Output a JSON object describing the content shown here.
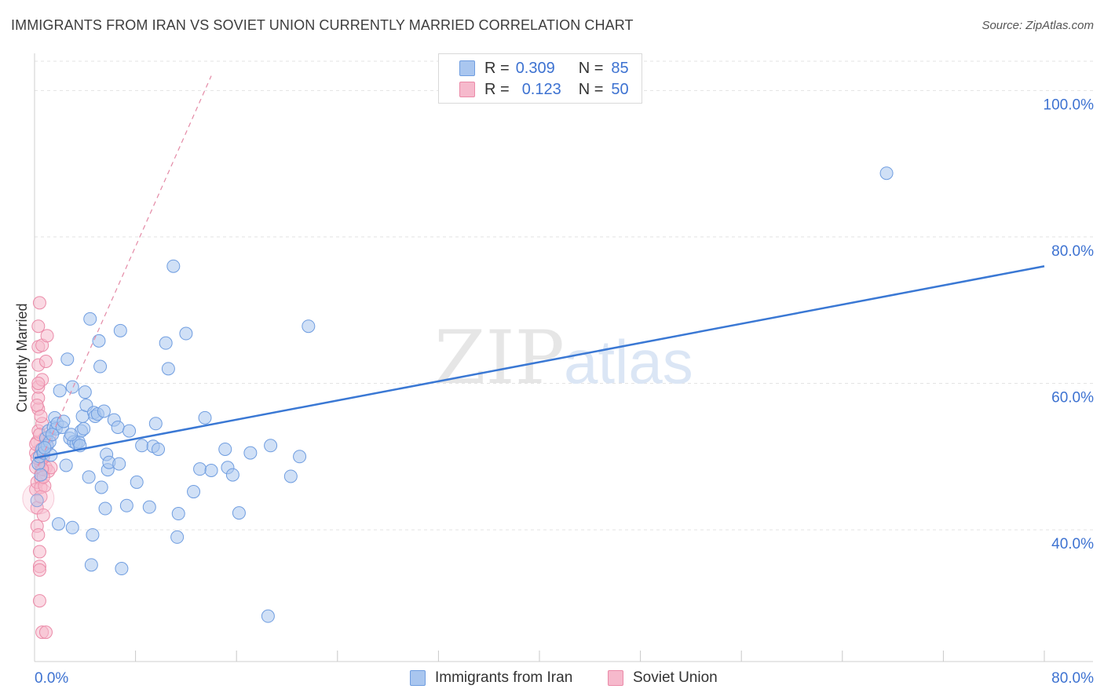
{
  "header": {
    "title": "IMMIGRANTS FROM IRAN VS SOVIET UNION CURRENTLY MARRIED CORRELATION CHART",
    "source": "Source: ZipAtlas.com"
  },
  "watermark": {
    "zip": "ZIP",
    "atlas": "atlas"
  },
  "legend": {
    "rows": [
      {
        "r_label": "R =",
        "r_value": "0.309",
        "n_label": "N =",
        "n_value": "85"
      },
      {
        "r_label": "R =",
        "r_value": "0.123",
        "n_label": "N =",
        "n_value": "50"
      }
    ]
  },
  "colors": {
    "series1_fill": "#a9c6ef",
    "series1_stroke": "#6f9de0",
    "series1_line": "#3a78d4",
    "series2_fill": "#f6b9cc",
    "series2_stroke": "#eb8aa8",
    "series2_line": "#e48aa6",
    "axis_text": "#3d72d1",
    "grid": "#e3e3e3"
  },
  "chart_data": {
    "type": "scatter",
    "title": "IMMIGRANTS FROM IRAN VS SOVIET UNION CURRENTLY MARRIED CORRELATION CHART",
    "xlabel": "",
    "ylabel": "Currently Married",
    "xlim": [
      0,
      80
    ],
    "ylim": [
      22,
      104
    ],
    "x_tick_labels": [
      "0.0%",
      "80.0%"
    ],
    "y_tick_labels": [
      "40.0%",
      "60.0%",
      "80.0%",
      "100.0%"
    ],
    "y_ticks": [
      40,
      60,
      80,
      100
    ],
    "x_minor_ticks": [
      8,
      16,
      24,
      32,
      40,
      48,
      56,
      64,
      72,
      80
    ],
    "grid": true,
    "legend_position": "top-center",
    "series": [
      {
        "name": "Immigrants from Iran",
        "color": "#a9c6ef",
        "trend": {
          "x": [
            0,
            80
          ],
          "y": [
            49.8,
            76.0
          ]
        },
        "points": [
          [
            0.2,
            44.0
          ],
          [
            0.3,
            49.0
          ],
          [
            0.4,
            50.0
          ],
          [
            0.6,
            51.0
          ],
          [
            0.7,
            50.5
          ],
          [
            0.9,
            52.5
          ],
          [
            1.0,
            51.5
          ],
          [
            1.1,
            53.5
          ],
          [
            1.2,
            52.0
          ],
          [
            1.3,
            50.2
          ],
          [
            1.5,
            54.0
          ],
          [
            1.6,
            55.3
          ],
          [
            1.7,
            53.8
          ],
          [
            1.8,
            54.5
          ],
          [
            2.0,
            59.0
          ],
          [
            2.2,
            54.0
          ],
          [
            2.5,
            48.8
          ],
          [
            2.6,
            63.3
          ],
          [
            2.8,
            52.5
          ],
          [
            3.0,
            59.5
          ],
          [
            3.1,
            52.0
          ],
          [
            3.3,
            51.8
          ],
          [
            3.5,
            52.0
          ],
          [
            3.7,
            53.5
          ],
          [
            3.8,
            55.5
          ],
          [
            3.9,
            53.8
          ],
          [
            4.0,
            58.8
          ],
          [
            4.1,
            57.0
          ],
          [
            4.3,
            47.2
          ],
          [
            4.4,
            68.8
          ],
          [
            4.5,
            35.2
          ],
          [
            4.6,
            39.3
          ],
          [
            4.7,
            56.0
          ],
          [
            4.8,
            55.5
          ],
          [
            5.0,
            55.8
          ],
          [
            5.1,
            65.8
          ],
          [
            5.2,
            62.3
          ],
          [
            5.3,
            45.8
          ],
          [
            5.5,
            56.2
          ],
          [
            5.6,
            42.9
          ],
          [
            5.7,
            50.3
          ],
          [
            5.8,
            48.2
          ],
          [
            5.9,
            49.2
          ],
          [
            6.3,
            55.0
          ],
          [
            6.6,
            54.0
          ],
          [
            6.7,
            49.0
          ],
          [
            6.8,
            67.2
          ],
          [
            6.9,
            34.7
          ],
          [
            7.3,
            43.3
          ],
          [
            7.5,
            53.5
          ],
          [
            8.1,
            46.5
          ],
          [
            8.5,
            51.5
          ],
          [
            9.1,
            43.1
          ],
          [
            9.4,
            51.4
          ],
          [
            9.6,
            54.5
          ],
          [
            9.8,
            51.0
          ],
          [
            10.4,
            65.5
          ],
          [
            10.6,
            62.0
          ],
          [
            11.0,
            76.0
          ],
          [
            11.3,
            39.0
          ],
          [
            11.4,
            42.2
          ],
          [
            12.0,
            66.8
          ],
          [
            12.6,
            45.2
          ],
          [
            13.1,
            48.3
          ],
          [
            13.5,
            55.3
          ],
          [
            14.0,
            48.1
          ],
          [
            15.1,
            51.0
          ],
          [
            15.3,
            48.5
          ],
          [
            15.7,
            47.5
          ],
          [
            16.2,
            42.3
          ],
          [
            17.1,
            50.5
          ],
          [
            18.5,
            28.2
          ],
          [
            18.7,
            51.5
          ],
          [
            20.3,
            47.3
          ],
          [
            21.0,
            50.0
          ],
          [
            21.7,
            67.8
          ],
          [
            67.5,
            88.7
          ],
          [
            1.4,
            53.0
          ],
          [
            2.3,
            54.8
          ],
          [
            3.6,
            51.5
          ],
          [
            1.9,
            40.8
          ],
          [
            3.0,
            40.3
          ],
          [
            0.5,
            47.5
          ],
          [
            0.8,
            51.2
          ],
          [
            2.9,
            53.0
          ]
        ]
      },
      {
        "name": "Soviet Union",
        "color": "#f6b9cc",
        "trend": {
          "x": [
            0,
            14
          ],
          "y": [
            47.6,
            102.0
          ]
        },
        "points": [
          [
            0.1,
            45.5
          ],
          [
            0.1,
            48.5
          ],
          [
            0.1,
            50.5
          ],
          [
            0.2,
            52.0
          ],
          [
            0.2,
            46.5
          ],
          [
            0.2,
            43.0
          ],
          [
            0.2,
            40.5
          ],
          [
            0.3,
            53.5
          ],
          [
            0.3,
            56.5
          ],
          [
            0.3,
            58.0
          ],
          [
            0.3,
            59.5
          ],
          [
            0.3,
            62.5
          ],
          [
            0.3,
            65.0
          ],
          [
            0.3,
            67.8
          ],
          [
            0.4,
            71.0
          ],
          [
            0.4,
            37.0
          ],
          [
            0.4,
            35.0
          ],
          [
            0.4,
            30.3
          ],
          [
            0.5,
            49.0
          ],
          [
            0.5,
            47.0
          ],
          [
            0.5,
            51.0
          ],
          [
            0.5,
            45.8
          ],
          [
            0.6,
            54.5
          ],
          [
            0.6,
            60.5
          ],
          [
            0.6,
            65.2
          ],
          [
            0.6,
            26.0
          ],
          [
            0.7,
            48.2
          ],
          [
            0.7,
            42.0
          ],
          [
            0.7,
            50.0
          ],
          [
            0.8,
            52.5
          ],
          [
            0.8,
            46.0
          ],
          [
            0.9,
            48.5
          ],
          [
            0.9,
            63.0
          ],
          [
            1.0,
            51.5
          ],
          [
            1.0,
            66.5
          ],
          [
            1.1,
            48.0
          ],
          [
            1.2,
            52.8
          ],
          [
            1.3,
            48.5
          ],
          [
            0.2,
            57.0
          ],
          [
            0.3,
            39.3
          ],
          [
            0.4,
            34.5
          ],
          [
            0.5,
            44.5
          ],
          [
            0.6,
            48.3
          ],
          [
            0.2,
            49.8
          ],
          [
            0.1,
            51.7
          ],
          [
            0.4,
            53.0
          ],
          [
            0.7,
            47.2
          ],
          [
            0.9,
            26.0
          ],
          [
            0.3,
            60.0
          ],
          [
            0.5,
            55.5
          ]
        ]
      }
    ]
  },
  "bottom_legend": {
    "items": [
      {
        "label": "Immigrants from Iran"
      },
      {
        "label": "Soviet Union"
      }
    ]
  }
}
